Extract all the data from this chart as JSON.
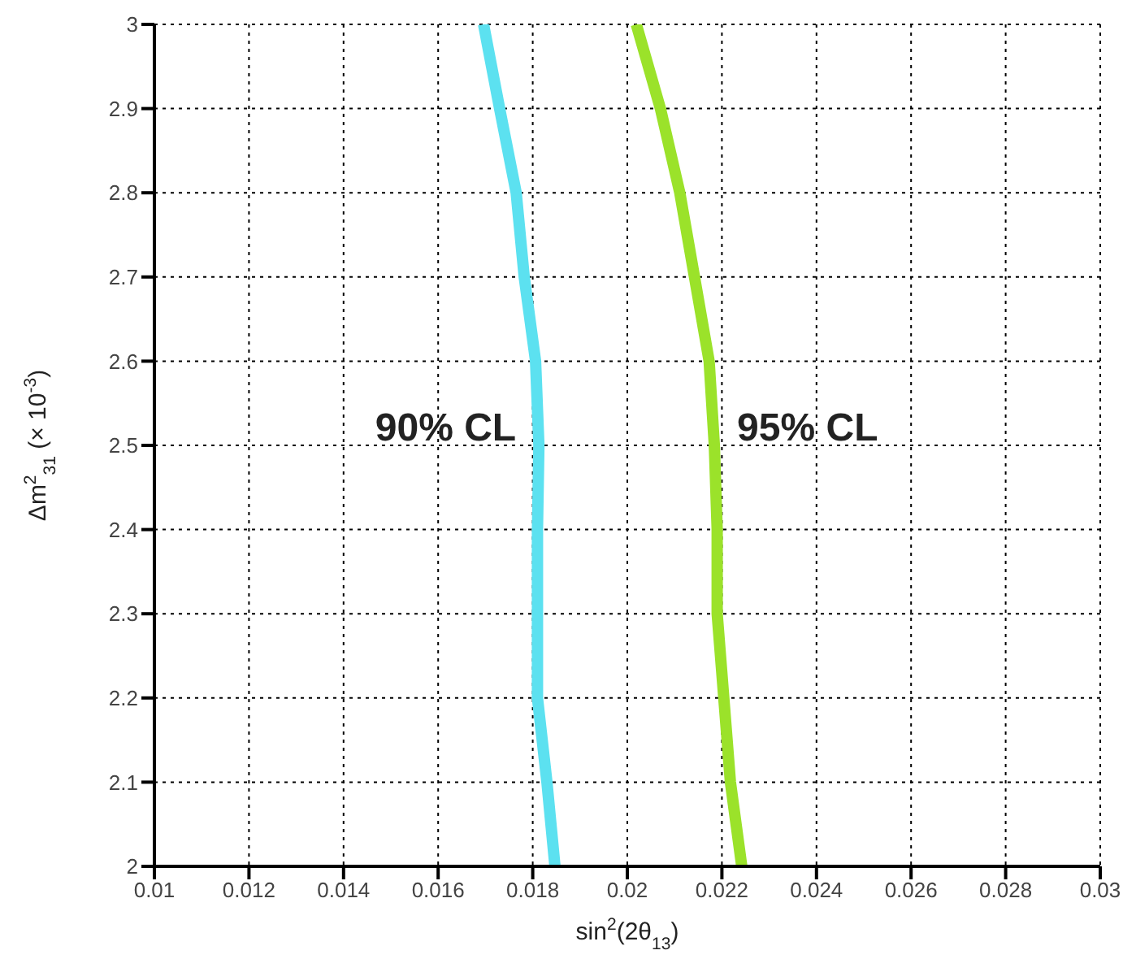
{
  "chart_data": {
    "type": "line",
    "xlabel": "sin$^{2}$(2θ$_{13}$)",
    "ylabel": "Δm$^{2}$$_{31}$ (× 10$^{-3}$)",
    "xlim": [
      0.01,
      0.03
    ],
    "xticks": [
      0.01,
      0.012,
      0.014,
      0.016,
      0.018,
      0.02,
      0.022,
      0.024,
      0.026,
      0.028,
      0.03
    ],
    "ylim": [
      2,
      3
    ],
    "yticks": [
      2,
      2.1,
      2.2,
      2.3,
      2.4,
      2.5,
      2.6,
      2.7,
      2.8,
      2.9,
      3
    ],
    "grid": true,
    "legend": false,
    "marker": "none",
    "line_style": "solid",
    "series": [
      {
        "color": "#5ce1f0",
        "x": [
          0.01847,
          0.0183,
          0.0181,
          0.0181,
          0.0181,
          0.01813,
          0.01806,
          0.01782,
          0.01765,
          0.0173,
          0.01696
        ],
        "values": [
          2,
          2.1,
          2.2,
          2.3,
          2.4,
          2.5,
          2.6,
          2.7,
          2.8,
          2.9,
          3
        ]
      },
      {
        "color": "#9be22a",
        "x": [
          0.02242,
          0.02218,
          0.02204,
          0.0219,
          0.0219,
          0.02184,
          0.02173,
          0.02142,
          0.02111,
          0.0207,
          0.02019
        ],
        "values": [
          2,
          2.1,
          2.2,
          2.3,
          2.4,
          2.5,
          2.6,
          2.7,
          2.8,
          2.9,
          3
        ]
      }
    ],
    "annotations": [
      "90% CL",
      "95% CL"
    ]
  }
}
